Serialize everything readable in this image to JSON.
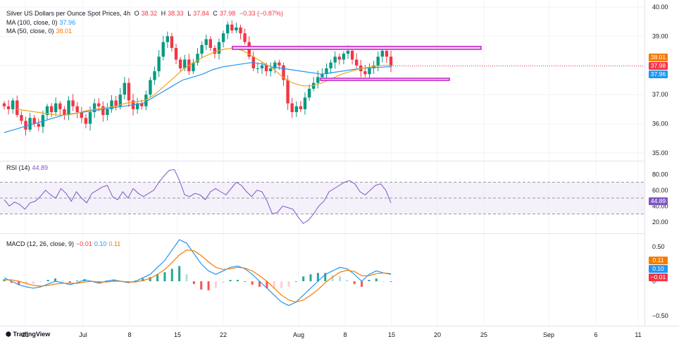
{
  "header": {
    "title": "Silver US Dollars per Ounce Spot Prices, 4h",
    "o_label": "O",
    "o_value": "38.32",
    "h_label": "H",
    "h_value": "38.33",
    "l_label": "L",
    "l_value": "37.84",
    "c_label": "C",
    "c_value": "37.98",
    "change": "−0.33 (−0.87%)"
  },
  "indicators": {
    "ma100_label": "MA (100, close, 0)",
    "ma100_value": "37.96",
    "ma50_label": "MA (50, close, 0)",
    "ma50_value": "38.01",
    "rsi_label": "RSI (14)",
    "rsi_value": "44.89",
    "macd_label": "MACD (12, 26, close, 9)",
    "macd_hist_value": "−0.01",
    "macd_value": "0.10",
    "macd_signal_value": "0.11"
  },
  "price_badges": [
    {
      "value": "38.01",
      "color": "#f57c00"
    },
    {
      "value": "37.98",
      "color": "#f23645"
    },
    {
      "value": "37.96",
      "color": "#2196f3"
    }
  ],
  "rsi_badge": {
    "value": "44.89",
    "color": "#7e57c2"
  },
  "macd_badges": [
    {
      "value": "0.11",
      "color": "#f57c00"
    },
    {
      "value": "0.10",
      "color": "#2196f3"
    },
    {
      "value": "−0.01",
      "color": "#f23645"
    }
  ],
  "colors": {
    "up": "#089981",
    "down": "#f23645",
    "ma100": "#2196f3",
    "ma50": "#f7a21b",
    "rsi": "#7e57c2",
    "zone": "#c21ec9",
    "macd": "#2196f3",
    "signal": "#f57c00"
  },
  "logo": "TradingView",
  "chart_data": [
    {
      "type": "candlestick",
      "name": "price",
      "ylim": [
        35.0,
        40.0
      ],
      "y_ticks": [
        "40.00",
        "39.00",
        "38.00",
        "37.00",
        "36.00",
        "35.00"
      ],
      "x_ticks": [
        "21",
        "Jul",
        "8",
        "15",
        "22",
        "Aug",
        "8",
        "15",
        "20",
        "25",
        "Sep",
        "6",
        "11"
      ],
      "close_path": [
        36.6,
        36.5,
        36.8,
        36.3,
        36.1,
        35.8,
        36.2,
        36.0,
        35.9,
        36.3,
        36.6,
        36.4,
        36.7,
        36.5,
        36.3,
        36.8,
        36.6,
        36.4,
        36.2,
        36.0,
        36.4,
        36.7,
        36.6,
        36.3,
        36.5,
        36.8,
        36.6,
        37.0,
        37.4,
        36.8,
        36.5,
        36.7,
        36.6,
        37.0,
        37.5,
        37.8,
        38.3,
        38.8,
        39.0,
        38.6,
        38.2,
        37.9,
        38.2,
        37.8,
        38.1,
        38.4,
        38.7,
        38.9,
        38.6,
        38.4,
        38.8,
        39.1,
        39.4,
        39.2,
        39.3,
        39.1,
        38.8,
        38.3,
        37.9,
        37.9,
        38.0,
        37.8,
        37.9,
        38.1,
        38.0,
        37.5,
        36.7,
        36.4,
        36.6,
        36.5,
        36.9,
        37.2,
        37.4,
        37.6,
        37.7,
        37.9,
        38.1,
        38.3,
        38.2,
        38.4,
        38.5,
        38.2,
        38.0,
        37.8,
        37.7,
        37.9,
        38.0,
        38.3,
        38.5,
        38.3,
        37.98
      ],
      "ma100_path": [
        35.7,
        35.8,
        35.9,
        36.0,
        36.1,
        36.2,
        36.3,
        36.35,
        36.4,
        36.45,
        36.5,
        36.55,
        36.6,
        36.65,
        36.7,
        36.9,
        37.1,
        37.3,
        37.5,
        37.6,
        37.7,
        37.85,
        37.95,
        38.0,
        38.05,
        38.1,
        38.05,
        37.95,
        37.9,
        37.85,
        37.8,
        37.75,
        37.7,
        37.75,
        37.8,
        37.85,
        37.9,
        37.92,
        37.94,
        37.96
      ],
      "ma50_path": [
        36.5,
        36.45,
        36.4,
        36.35,
        36.3,
        36.3,
        36.35,
        36.45,
        36.5,
        36.55,
        36.6,
        36.7,
        36.75,
        36.8,
        37.0,
        37.3,
        37.6,
        37.9,
        38.1,
        38.3,
        38.45,
        38.55,
        38.6,
        38.5,
        38.3,
        38.1,
        37.9,
        37.6,
        37.4,
        37.3,
        37.3,
        37.4,
        37.55,
        37.7,
        37.8,
        37.9,
        37.95,
        38.0,
        38.01
      ],
      "resistance_zone": [
        38.55,
        38.65
      ],
      "support_zone": [
        37.52,
        37.56
      ]
    },
    {
      "type": "line",
      "name": "RSI",
      "ylim": [
        10,
        90
      ],
      "y_ticks": [
        "80.00",
        "60.00",
        "40.00",
        "20.00"
      ],
      "band": [
        30,
        70
      ],
      "midline": 50,
      "values": [
        48,
        40,
        45,
        42,
        36,
        44,
        46,
        52,
        60,
        54,
        50,
        62,
        56,
        46,
        58,
        50,
        44,
        56,
        60,
        64,
        66,
        52,
        48,
        58,
        50,
        62,
        56,
        52,
        56,
        60,
        70,
        78,
        85,
        86,
        72,
        54,
        52,
        56,
        54,
        48,
        58,
        62,
        58,
        54,
        62,
        70,
        66,
        58,
        52,
        60,
        58,
        46,
        30,
        32,
        40,
        38,
        36,
        26,
        18,
        22,
        30,
        40,
        46,
        58,
        62,
        66,
        70,
        72,
        68,
        58,
        54,
        60,
        66,
        68,
        60,
        44
      ]
    },
    {
      "type": "line",
      "name": "MACD",
      "ylim": [
        -0.6,
        0.6
      ],
      "y_ticks": [
        "0.50",
        "0",
        "−0.50"
      ],
      "macd_values": [
        0.05,
        0.0,
        -0.05,
        -0.08,
        -0.1,
        -0.08,
        -0.04,
        0.0,
        -0.02,
        -0.05,
        -0.02,
        0.02,
        0.0,
        -0.03,
        0.0,
        0.02,
        0.0,
        -0.02,
        0.0,
        0.05,
        0.1,
        0.2,
        0.3,
        0.45,
        0.6,
        0.55,
        0.4,
        0.25,
        0.15,
        0.1,
        0.15,
        0.2,
        0.22,
        0.18,
        0.1,
        0.0,
        -0.1,
        -0.2,
        -0.3,
        -0.35,
        -0.3,
        -0.2,
        -0.1,
        0.0,
        0.1,
        0.15,
        0.2,
        0.18,
        0.1,
        0.0,
        0.1,
        0.15,
        0.12,
        0.1
      ],
      "signal_values": [
        0.02,
        0.02,
        0.0,
        -0.03,
        -0.06,
        -0.07,
        -0.06,
        -0.04,
        -0.03,
        -0.03,
        -0.03,
        -0.01,
        0.0,
        -0.01,
        -0.01,
        0.0,
        0.0,
        -0.01,
        -0.01,
        0.01,
        0.04,
        0.1,
        0.17,
        0.27,
        0.38,
        0.45,
        0.44,
        0.37,
        0.28,
        0.2,
        0.17,
        0.18,
        0.2,
        0.19,
        0.15,
        0.08,
        0.0,
        -0.1,
        -0.2,
        -0.27,
        -0.3,
        -0.27,
        -0.2,
        -0.12,
        -0.02,
        0.06,
        0.13,
        0.16,
        0.14,
        0.08,
        0.08,
        0.11,
        0.12,
        0.11
      ],
      "hist_values": [
        0.03,
        -0.02,
        -0.05,
        -0.05,
        -0.04,
        -0.01,
        0.02,
        0.04,
        0.01,
        -0.02,
        0.01,
        0.03,
        0.0,
        -0.02,
        0.01,
        0.02,
        0.0,
        -0.01,
        0.01,
        0.04,
        0.06,
        0.1,
        0.13,
        0.18,
        0.22,
        0.1,
        -0.04,
        -0.12,
        -0.13,
        -0.1,
        -0.02,
        0.02,
        0.02,
        -0.01,
        -0.05,
        -0.08,
        -0.1,
        -0.1,
        -0.1,
        -0.08,
        0.0,
        0.07,
        0.1,
        0.12,
        0.12,
        0.09,
        0.07,
        0.02,
        -0.04,
        -0.08,
        0.02,
        0.04,
        0.0,
        -0.01
      ]
    }
  ]
}
